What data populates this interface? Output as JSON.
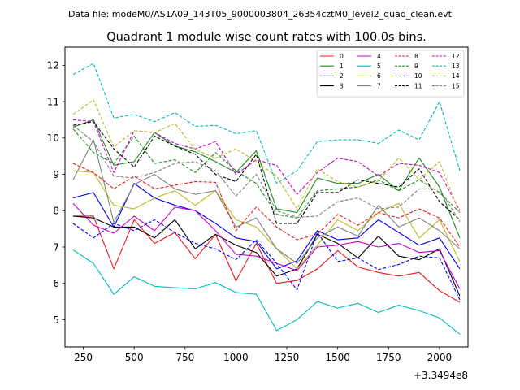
{
  "chart_data": {
    "type": "line",
    "suptitle": "Data file: modeM0/AS1A09_143T05_9000003804_26354cztM0_level2_quad_clean.evt",
    "title": "Quadrant 1 module wise count rates with 100.0s bins.",
    "xlabel": "",
    "ylabel": "",
    "x_offset_label": "+3.3494e8",
    "xlim": [
      160,
      2140
    ],
    "ylim": [
      4.25,
      12.5
    ],
    "xticks": [
      250,
      500,
      750,
      1000,
      1250,
      1500,
      1750,
      2000
    ],
    "yticks": [
      5,
      6,
      7,
      8,
      9,
      10,
      11,
      12
    ],
    "x": [
      200,
      300,
      400,
      500,
      600,
      700,
      800,
      900,
      1000,
      1100,
      1200,
      1300,
      1400,
      1500,
      1600,
      1700,
      1800,
      1900,
      2000,
      2100
    ],
    "legend_position": "upper right",
    "legend_columns": 4,
    "series": [
      {
        "name": "0",
        "color": "#e41a1c",
        "dashed": false,
        "values": [
          7.85,
          7.85,
          6.4,
          7.75,
          7.1,
          7.4,
          6.68,
          7.35,
          6.07,
          7.1,
          6.0,
          6.08,
          6.4,
          6.9,
          6.45,
          6.3,
          6.2,
          6.3,
          5.8,
          5.48
        ]
      },
      {
        "name": "1",
        "color": "#1a8a1a",
        "dashed": false,
        "values": [
          10.3,
          10.5,
          9.25,
          9.35,
          10.15,
          9.78,
          9.62,
          9.35,
          9.05,
          9.65,
          8.05,
          7.95,
          8.9,
          8.75,
          8.75,
          9.0,
          8.55,
          9.45,
          8.65,
          7.25
        ]
      },
      {
        "name": "2",
        "color": "#0000ee",
        "dashed": false,
        "values": [
          8.35,
          8.5,
          7.55,
          8.75,
          8.35,
          8.15,
          8.0,
          7.65,
          7.25,
          7.15,
          6.4,
          6.62,
          7.45,
          7.2,
          7.25,
          7.75,
          7.4,
          7.05,
          7.25,
          6.4
        ]
      },
      {
        "name": "3",
        "color": "#000000",
        "dashed": false,
        "values": [
          7.85,
          7.8,
          7.55,
          7.55,
          7.25,
          7.75,
          6.95,
          7.35,
          7.05,
          6.85,
          6.2,
          6.4,
          7.35,
          7.1,
          6.7,
          7.3,
          6.75,
          6.65,
          6.95,
          5.65
        ]
      },
      {
        "name": "4",
        "color": "#cc00cc",
        "dashed": false,
        "values": [
          8.2,
          7.6,
          7.38,
          7.85,
          7.45,
          8.1,
          8.0,
          7.45,
          6.8,
          6.75,
          6.55,
          6.35,
          7.0,
          7.05,
          7.15,
          7.0,
          7.1,
          6.85,
          6.9,
          5.85
        ]
      },
      {
        "name": "5",
        "color": "#00bbbb",
        "dashed": false,
        "values": [
          6.92,
          6.55,
          5.7,
          6.18,
          5.92,
          5.88,
          5.85,
          6.02,
          5.75,
          5.7,
          4.7,
          5.0,
          5.5,
          5.32,
          5.45,
          5.2,
          5.4,
          5.25,
          5.05,
          4.6
        ]
      },
      {
        "name": "6",
        "color": "#bbbb22",
        "dashed": false,
        "values": [
          9.1,
          9.05,
          8.15,
          8.05,
          8.35,
          8.55,
          8.15,
          8.55,
          7.75,
          7.55,
          6.95,
          6.4,
          7.05,
          7.75,
          7.45,
          7.95,
          8.2,
          7.25,
          7.75,
          6.6
        ]
      },
      {
        "name": "7",
        "color": "#808080",
        "dashed": false,
        "values": [
          8.85,
          9.95,
          7.68,
          8.72,
          9.0,
          8.6,
          8.45,
          8.55,
          7.55,
          7.8,
          6.95,
          6.55,
          7.25,
          7.55,
          7.3,
          8.15,
          7.55,
          7.8,
          7.45,
          6.95
        ]
      },
      {
        "name": "8",
        "color": "#e41a1c",
        "dashed": true,
        "values": [
          9.3,
          9.05,
          8.6,
          8.95,
          8.6,
          8.7,
          8.8,
          8.78,
          7.45,
          8.1,
          7.55,
          7.2,
          7.35,
          7.9,
          7.6,
          7.95,
          7.8,
          8.05,
          7.8,
          7.0
        ]
      },
      {
        "name": "9",
        "color": "#1a8a1a",
        "dashed": true,
        "values": [
          10.25,
          9.6,
          9.3,
          10.05,
          9.3,
          9.4,
          9.05,
          9.6,
          9.1,
          8.75,
          7.9,
          7.8,
          8.55,
          8.6,
          8.65,
          8.85,
          8.55,
          8.85,
          8.5,
          7.95
        ]
      },
      {
        "name": "10",
        "color": "#0000ee",
        "dashed": true,
        "values": [
          7.65,
          7.25,
          7.65,
          7.45,
          7.75,
          7.4,
          7.1,
          6.95,
          6.65,
          7.2,
          6.55,
          5.82,
          7.4,
          6.6,
          6.7,
          6.38,
          6.52,
          6.75,
          6.7,
          5.55
        ]
      },
      {
        "name": "11",
        "color": "#000000",
        "dashed": true,
        "values": [
          10.35,
          10.45,
          9.7,
          9.2,
          10.05,
          9.78,
          9.55,
          9.0,
          8.8,
          9.55,
          7.65,
          7.65,
          8.5,
          8.5,
          8.85,
          8.75,
          8.65,
          9.15,
          8.25,
          7.75
        ]
      },
      {
        "name": "12",
        "color": "#cc00cc",
        "dashed": true,
        "values": [
          10.5,
          10.45,
          9.05,
          10.2,
          10.15,
          9.85,
          9.7,
          9.9,
          9.0,
          9.4,
          9.25,
          8.45,
          9.05,
          9.45,
          9.35,
          8.95,
          9.3,
          9.25,
          9.05,
          8.0
        ]
      },
      {
        "name": "13",
        "color": "#00bbbb",
        "dashed": true,
        "values": [
          11.75,
          12.05,
          10.55,
          10.65,
          10.45,
          10.7,
          10.32,
          10.35,
          10.12,
          10.2,
          8.75,
          9.1,
          9.9,
          9.95,
          9.95,
          9.85,
          10.22,
          9.95,
          11.0,
          9.1
        ]
      },
      {
        "name": "14",
        "color": "#bbbb22",
        "dashed": true,
        "values": [
          10.65,
          11.05,
          9.75,
          10.2,
          10.15,
          10.4,
          9.68,
          9.45,
          9.7,
          9.35,
          8.95,
          8.05,
          9.15,
          8.8,
          8.65,
          8.82,
          9.45,
          8.85,
          9.35,
          7.9
        ]
      },
      {
        "name": "15",
        "color": "#808080",
        "dashed": true,
        "values": [
          10.35,
          9.9,
          8.95,
          8.9,
          9.05,
          9.3,
          9.35,
          9.1,
          8.4,
          9.0,
          8.0,
          7.82,
          7.85,
          8.25,
          8.35,
          8.05,
          8.1,
          8.6,
          8.6,
          7.7
        ]
      }
    ]
  }
}
